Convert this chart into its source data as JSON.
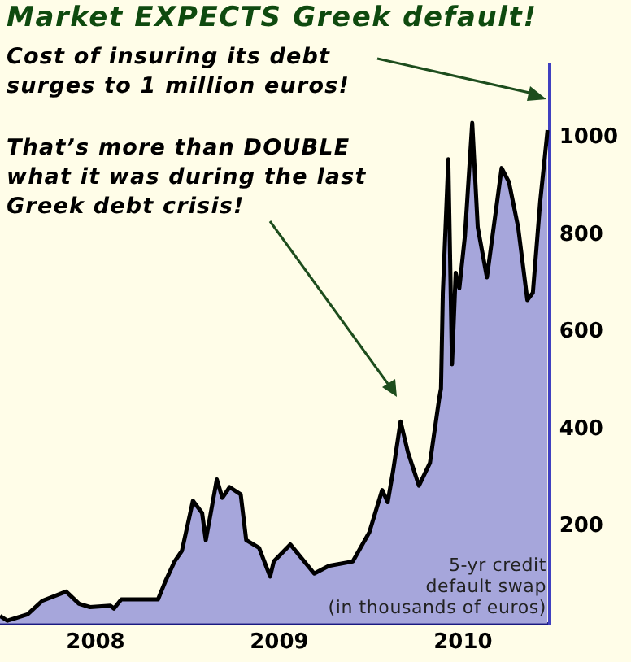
{
  "chart_data": {
    "type": "area",
    "title": "Market EXPECTS Greek default!",
    "annotations": [
      "Cost of insuring its debt surges to 1 million euros!",
      "That’s more than DOUBLE what it was during the last Greek debt crisis!",
      "5-yr credit\ndefault swap\n(in thousands of euros)"
    ],
    "series": [
      {
        "color": "#a6a6db",
        "x": [
          2007.48,
          2007.52,
          2007.63,
          2007.71,
          2007.84,
          2007.91,
          2007.97,
          2008.08,
          2008.1,
          2008.14,
          2008.34,
          2008.38,
          2008.43,
          2008.47,
          2008.53,
          2008.56,
          2008.58,
          2008.6,
          2008.63,
          2008.66,
          2008.69,
          2008.73,
          2008.79,
          2008.82,
          2008.89,
          2008.95,
          2008.97,
          2009.06,
          2009.19,
          2009.27,
          2009.4,
          2009.49,
          2009.56,
          2009.59,
          2009.62,
          2009.66,
          2009.7,
          2009.76,
          2009.82,
          2009.87,
          2009.88,
          2009.89,
          2009.92,
          2009.94,
          2009.96,
          2009.98,
          2010.01,
          2010.05,
          2010.08,
          2010.13,
          2010.21,
          2010.25,
          2010.3,
          2010.35,
          2010.38,
          2010.42,
          2010.46
        ],
        "values": [
          16,
          6,
          19,
          47,
          66,
          41,
          34,
          37,
          31,
          50,
          50,
          87,
          128,
          150,
          253,
          238,
          228,
          172,
          234,
          297,
          259,
          281,
          266,
          172,
          156,
          97,
          128,
          163,
          103,
          119,
          128,
          188,
          275,
          250,
          316,
          416,
          353,
          284,
          331,
          463,
          484,
          681,
          956,
          534,
          722,
          691,
          797,
          1031,
          816,
          713,
          938,
          909,
          816,
          666,
          681,
          869,
          1016
        ]
      }
    ],
    "xlim": [
      2007.48,
      2010.47
    ],
    "xticks": [
      2008,
      2009,
      2010
    ],
    "ylim": [
      0,
      1150
    ],
    "yticks": [
      200,
      400,
      600,
      800,
      1000
    ],
    "grid": false,
    "legend": false
  }
}
